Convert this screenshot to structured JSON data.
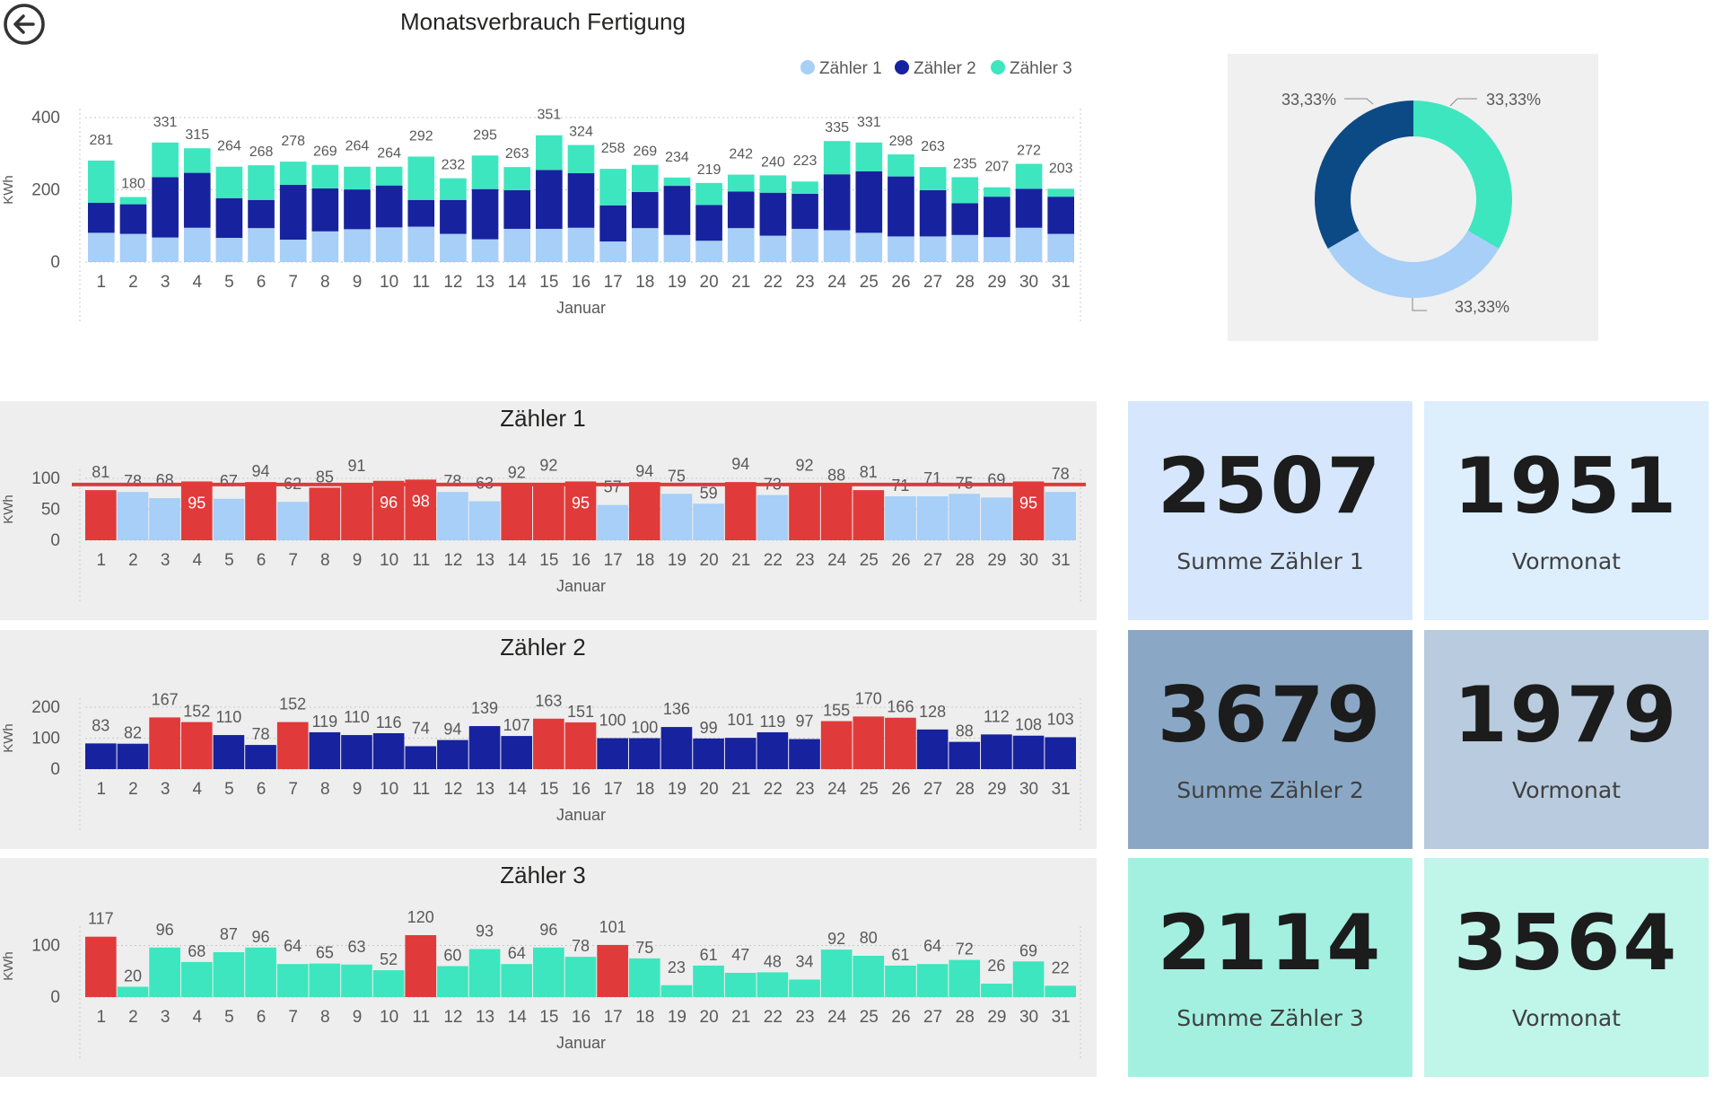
{
  "colors": {
    "z1": "#a7cff7",
    "z2": "#17229e",
    "z3": "#3de6be",
    "alert": "#e03a3a",
    "threshold": "#e03a3a",
    "donut_z1": "#a7cff7",
    "donut_z2": "#0c4a86",
    "donut_z3": "#3de6be"
  },
  "kpis": [
    {
      "value": "2507",
      "label": "Summe Zähler 1",
      "bg": "#d6e7fd"
    },
    {
      "value": "1951",
      "label": "Vormonat",
      "bg": "#ddeefd"
    },
    {
      "value": "3679",
      "label": "Summe Zähler 2",
      "bg": "#8aa8c6"
    },
    {
      "value": "1979",
      "label": "Vormonat",
      "bg": "#b9cbde"
    },
    {
      "value": "2114",
      "label": "Summe Zähler 3",
      "bg": "#a3f0e0"
    },
    {
      "value": "3564",
      "label": "Vormonat",
      "bg": "#c0f5ea"
    }
  ],
  "chart_data": [
    {
      "type": "bar",
      "stacked": true,
      "title": "Monatsverbrauch Fertigung",
      "xlabel": "Januar",
      "ylabel": "KWh",
      "ylim": [
        0,
        400
      ],
      "yticks": [
        "0",
        "200",
        "400"
      ],
      "categories": [
        "1",
        "2",
        "3",
        "4",
        "5",
        "6",
        "7",
        "8",
        "9",
        "10",
        "11",
        "12",
        "13",
        "14",
        "15",
        "16",
        "17",
        "18",
        "19",
        "20",
        "21",
        "22",
        "23",
        "24",
        "25",
        "26",
        "27",
        "28",
        "29",
        "30",
        "31"
      ],
      "legend": [
        "Zähler 1",
        "Zähler 2",
        "Zähler 3"
      ],
      "series": [
        {
          "name": "Zähler 1",
          "values": [
            81,
            78,
            68,
            95,
            67,
            94,
            62,
            85,
            91,
            96,
            98,
            78,
            63,
            92,
            92,
            95,
            57,
            94,
            75,
            59,
            94,
            73,
            92,
            88,
            81,
            71,
            71,
            75,
            69,
            95,
            78
          ]
        },
        {
          "name": "Zähler 2",
          "values": [
            83,
            82,
            167,
            152,
            110,
            78,
            152,
            119,
            110,
            116,
            74,
            94,
            139,
            107,
            163,
            151,
            100,
            100,
            136,
            99,
            101,
            119,
            97,
            155,
            170,
            166,
            128,
            88,
            112,
            108,
            103
          ]
        },
        {
          "name": "Zähler 3",
          "values": [
            117,
            20,
            96,
            68,
            87,
            96,
            64,
            65,
            63,
            52,
            120,
            60,
            93,
            64,
            96,
            78,
            101,
            75,
            23,
            61,
            47,
            48,
            34,
            92,
            80,
            61,
            64,
            72,
            26,
            69,
            22
          ]
        }
      ],
      "totals": [
        "281",
        "180",
        "331",
        "315",
        "264",
        "268",
        "278",
        "269",
        "264",
        "264",
        "292",
        "232",
        "295",
        "263",
        "351",
        "324",
        "258",
        "269",
        "234",
        "219",
        "242",
        "240",
        "223",
        "335",
        "331",
        "298",
        "263",
        "235",
        "207",
        "272",
        "203"
      ]
    },
    {
      "type": "pie",
      "donut": true,
      "labels": [
        "Zähler 1",
        "Zähler 2",
        "Zähler 3"
      ],
      "values": [
        33.33,
        33.33,
        33.33
      ],
      "value_labels": [
        "33,33%",
        "33,33%",
        "33,33%"
      ]
    },
    {
      "type": "bar",
      "title": "Zähler 1",
      "xlabel": "Januar",
      "ylabel": "KWh",
      "ylim": [
        0,
        100
      ],
      "yticks": [
        "0",
        "50",
        "100"
      ],
      "threshold": 90,
      "categories": [
        "1",
        "2",
        "3",
        "4",
        "5",
        "6",
        "7",
        "8",
        "9",
        "10",
        "11",
        "12",
        "13",
        "14",
        "15",
        "16",
        "17",
        "18",
        "19",
        "20",
        "21",
        "22",
        "23",
        "24",
        "25",
        "26",
        "27",
        "28",
        "29",
        "30",
        "31"
      ],
      "values": [
        81,
        78,
        68,
        95,
        67,
        94,
        62,
        85,
        91,
        96,
        98,
        78,
        63,
        92,
        92,
        95,
        57,
        94,
        75,
        59,
        94,
        73,
        92,
        88,
        81,
        71,
        71,
        75,
        69,
        95,
        78
      ],
      "highlight": [
        1,
        0,
        0,
        1,
        0,
        1,
        0,
        1,
        1,
        1,
        1,
        0,
        0,
        1,
        1,
        1,
        0,
        1,
        0,
        0,
        1,
        0,
        1,
        1,
        1,
        0,
        0,
        0,
        0,
        1,
        0
      ],
      "value_labels": [
        "81",
        "78",
        "68",
        "95",
        "67",
        "94",
        "62",
        "85",
        "91",
        "96",
        "98",
        "78",
        "63",
        "92",
        "92",
        "95",
        "57",
        "94",
        "75",
        "59",
        "94",
        "73",
        "92",
        "88",
        "81",
        "71",
        "71",
        "75",
        "69",
        "95",
        "78"
      ]
    },
    {
      "type": "bar",
      "title": "Zähler 2",
      "xlabel": "Januar",
      "ylabel": "KWh",
      "ylim": [
        0,
        200
      ],
      "yticks": [
        "0",
        "100",
        "200"
      ],
      "categories": [
        "1",
        "2",
        "3",
        "4",
        "5",
        "6",
        "7",
        "8",
        "9",
        "10",
        "11",
        "12",
        "13",
        "14",
        "15",
        "16",
        "17",
        "18",
        "19",
        "20",
        "21",
        "22",
        "23",
        "24",
        "25",
        "26",
        "27",
        "28",
        "29",
        "30",
        "31"
      ],
      "values": [
        83,
        82,
        167,
        152,
        110,
        78,
        152,
        119,
        110,
        116,
        74,
        94,
        139,
        107,
        163,
        151,
        100,
        100,
        136,
        99,
        101,
        119,
        97,
        155,
        170,
        166,
        128,
        88,
        112,
        108,
        103
      ],
      "highlight": [
        0,
        0,
        1,
        1,
        0,
        0,
        1,
        0,
        0,
        0,
        0,
        0,
        0,
        0,
        1,
        1,
        0,
        0,
        0,
        0,
        0,
        0,
        0,
        1,
        1,
        1,
        0,
        0,
        0,
        0,
        0
      ],
      "value_labels": [
        "83",
        "82",
        "167",
        "152",
        "110",
        "78",
        "152",
        "119",
        "110",
        "116",
        "74",
        "94",
        "139",
        "107",
        "163",
        "151",
        "100",
        "100",
        "136",
        "99",
        "101",
        "119",
        "97",
        "155",
        "170",
        "166",
        "128",
        "88",
        "112",
        "108",
        "103"
      ]
    },
    {
      "type": "bar",
      "title": "Zähler 3",
      "xlabel": "Januar",
      "ylabel": "KWh",
      "ylim": [
        0,
        120
      ],
      "yticks": [
        "0",
        "100"
      ],
      "categories": [
        "1",
        "2",
        "3",
        "4",
        "5",
        "6",
        "7",
        "8",
        "9",
        "10",
        "11",
        "12",
        "13",
        "14",
        "15",
        "16",
        "17",
        "18",
        "19",
        "20",
        "21",
        "22",
        "23",
        "24",
        "25",
        "26",
        "27",
        "28",
        "29",
        "30",
        "31"
      ],
      "values": [
        117,
        20,
        96,
        68,
        87,
        96,
        64,
        65,
        63,
        52,
        120,
        60,
        93,
        64,
        96,
        78,
        101,
        75,
        23,
        61,
        47,
        48,
        34,
        92,
        80,
        61,
        64,
        72,
        26,
        69,
        22
      ],
      "highlight": [
        1,
        0,
        0,
        0,
        0,
        0,
        0,
        0,
        0,
        0,
        1,
        0,
        0,
        0,
        0,
        0,
        1,
        0,
        0,
        0,
        0,
        0,
        0,
        0,
        0,
        0,
        0,
        0,
        0,
        0,
        0
      ],
      "value_labels": [
        "117",
        "20",
        "96",
        "68",
        "87",
        "96",
        "64",
        "65",
        "63",
        "52",
        "120",
        "60",
        "93",
        "64",
        "96",
        "78",
        "101",
        "75",
        "23",
        "61",
        "47",
        "48",
        "34",
        "92",
        "80",
        "61",
        "64",
        "72",
        "26",
        "69",
        "22"
      ]
    }
  ]
}
